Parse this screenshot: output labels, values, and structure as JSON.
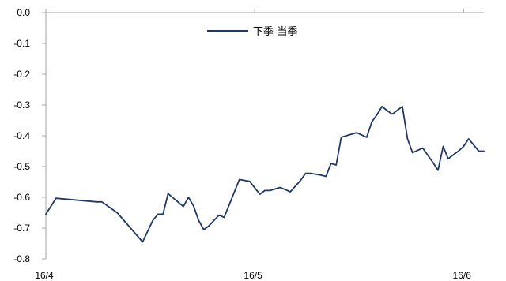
{
  "chart_data": {
    "type": "line",
    "title": "",
    "xlabel": "",
    "ylabel": "",
    "x_tick_labels": [
      "16/4",
      "16/5",
      "16/6"
    ],
    "y_tick_labels": [
      "0.0",
      "-0.1",
      "-0.2",
      "-0.3",
      "-0.4",
      "-0.5",
      "-0.6",
      "-0.7",
      "-0.8"
    ],
    "ylim": [
      -0.8,
      0.0
    ],
    "grid": false,
    "legend_position": "top-center",
    "colors": {
      "series": "#1f3864",
      "axis": "#a6a6a6"
    },
    "series": [
      {
        "name": "下季-当季",
        "x": [
          0,
          2,
          10,
          11,
          14,
          19,
          21,
          22,
          23,
          24,
          27,
          28,
          29,
          30,
          31,
          32,
          34,
          35,
          38,
          39,
          40,
          42,
          43,
          44,
          46,
          47,
          48,
          50,
          51,
          52,
          53,
          54,
          55,
          56,
          57,
          58,
          61,
          63,
          64,
          65,
          66,
          67,
          68,
          70,
          71,
          72,
          74,
          76,
          77,
          78,
          79,
          80,
          81,
          82,
          83,
          85,
          86
        ],
        "values": [
          -0.655,
          -0.603,
          -0.615,
          -0.615,
          -0.65,
          -0.745,
          -0.675,
          -0.655,
          -0.655,
          -0.588,
          -0.63,
          -0.6,
          -0.628,
          -0.675,
          -0.705,
          -0.693,
          -0.658,
          -0.665,
          -0.542,
          -0.545,
          -0.548,
          -0.59,
          -0.578,
          -0.578,
          -0.568,
          -0.575,
          -0.582,
          -0.545,
          -0.522,
          -0.522,
          -0.525,
          -0.528,
          -0.532,
          -0.49,
          -0.495,
          -0.405,
          -0.39,
          -0.405,
          -0.355,
          -0.332,
          -0.305,
          -0.318,
          -0.33,
          -0.305,
          -0.41,
          -0.455,
          -0.44,
          -0.487,
          -0.512,
          -0.435,
          -0.475,
          -0.462,
          -0.45,
          -0.435,
          -0.41,
          -0.45,
          -0.45
        ]
      }
    ]
  }
}
